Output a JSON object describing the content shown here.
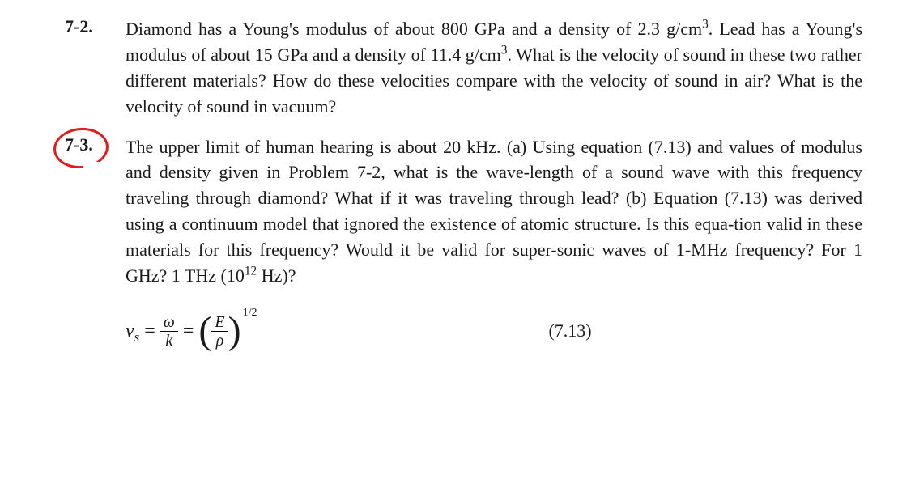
{
  "problems": [
    {
      "number": "7-2.",
      "circled": false,
      "text_html": "Diamond has a Young's modulus of about 800 GPa and a density of 2.3 g/cm<sup>3</sup>. Lead has a Young's modulus of about 15 GPa and a density of 11.4 g/cm<sup>3</sup>. What is the velocity of sound in these two rather different materials? How do these velocities compare with the velocity of sound in air? What is the velocity of sound in vacuum?"
    },
    {
      "number": "7-3.",
      "circled": true,
      "text_html": "The upper limit of human hearing is about 20 kHz. (a) Using equation (7.13) and values of modulus and density given in Problem 7-2, what is the wave-length of a sound wave with this frequency traveling through diamond? What if it was traveling through lead? (b) Equation (7.13) was derived using a continuum model that ignored the existence of atomic structure. Is this equa-tion valid in these materials for this frequency? Would it be valid for super-sonic waves of 1-MHz frequency? For 1 GHz? 1 THz (10<sup>12</sup> Hz)?"
    }
  ],
  "equation": {
    "lhs_var": "v",
    "lhs_sub": "s",
    "frac1_num": "ω",
    "frac1_den": "k",
    "frac2_num": "E",
    "frac2_den": "ρ",
    "exponent": "1/2",
    "number": "(7.13)"
  },
  "styling": {
    "body_width": 1130,
    "body_height": 608,
    "background": "#ffffff",
    "text_color": "#1a1a1a",
    "circle_color": "#e21b1b",
    "font_family": "Georgia, Times New Roman, serif",
    "base_fontsize": 22,
    "line_height": 1.45
  }
}
